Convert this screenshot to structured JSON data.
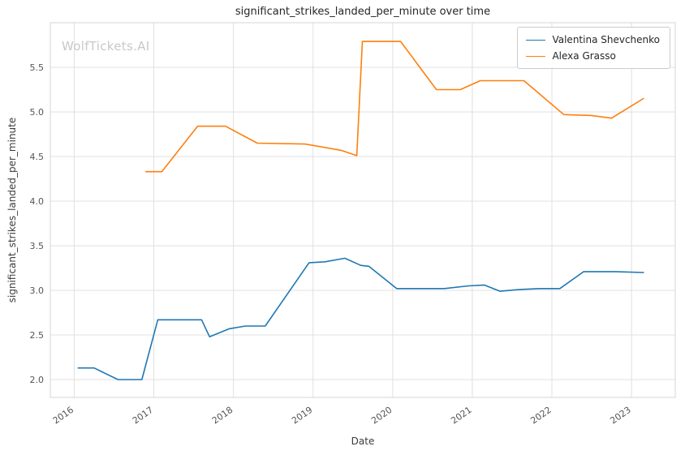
{
  "watermark": "WolfTickets.AI",
  "chart_data": {
    "type": "line",
    "title": "significant_strikes_landed_per_minute over time",
    "xlabel": "Date",
    "ylabel": "significant_strikes_landed_per_minute",
    "xlim": [
      2015.7,
      2023.55
    ],
    "ylim": [
      1.8,
      6.0
    ],
    "xticks": [
      2016,
      2017,
      2018,
      2019,
      2020,
      2021,
      2022,
      2023
    ],
    "yticks": [
      2.0,
      2.5,
      3.0,
      3.5,
      4.0,
      4.5,
      5.0,
      5.5
    ],
    "grid": true,
    "legend_position": "upper right",
    "series": [
      {
        "name": "Valentina Shevchenko",
        "color": "#1f77b4",
        "points": [
          [
            2016.05,
            2.13
          ],
          [
            2016.25,
            2.13
          ],
          [
            2016.55,
            2.0
          ],
          [
            2016.85,
            2.0
          ],
          [
            2017.05,
            2.67
          ],
          [
            2017.35,
            2.67
          ],
          [
            2017.6,
            2.67
          ],
          [
            2017.7,
            2.48
          ],
          [
            2017.95,
            2.57
          ],
          [
            2018.15,
            2.6
          ],
          [
            2018.4,
            2.6
          ],
          [
            2018.95,
            3.31
          ],
          [
            2019.15,
            3.32
          ],
          [
            2019.4,
            3.36
          ],
          [
            2019.6,
            3.28
          ],
          [
            2019.7,
            3.27
          ],
          [
            2020.05,
            3.02
          ],
          [
            2020.35,
            3.02
          ],
          [
            2020.65,
            3.02
          ],
          [
            2020.95,
            3.05
          ],
          [
            2021.15,
            3.06
          ],
          [
            2021.35,
            2.99
          ],
          [
            2021.6,
            3.01
          ],
          [
            2021.85,
            3.02
          ],
          [
            2022.1,
            3.02
          ],
          [
            2022.4,
            3.21
          ],
          [
            2022.8,
            3.21
          ],
          [
            2023.15,
            3.2
          ]
        ]
      },
      {
        "name": "Alexa Grasso",
        "color": "#ff7f0e",
        "points": [
          [
            2016.9,
            4.33
          ],
          [
            2017.1,
            4.33
          ],
          [
            2017.55,
            4.84
          ],
          [
            2017.9,
            4.84
          ],
          [
            2018.3,
            4.65
          ],
          [
            2018.9,
            4.64
          ],
          [
            2019.35,
            4.57
          ],
          [
            2019.55,
            4.51
          ],
          [
            2019.62,
            5.79
          ],
          [
            2020.1,
            5.79
          ],
          [
            2020.55,
            5.25
          ],
          [
            2020.85,
            5.25
          ],
          [
            2021.1,
            5.35
          ],
          [
            2021.65,
            5.35
          ],
          [
            2022.15,
            4.97
          ],
          [
            2022.5,
            4.96
          ],
          [
            2022.75,
            4.93
          ],
          [
            2023.15,
            5.15
          ]
        ]
      }
    ]
  }
}
